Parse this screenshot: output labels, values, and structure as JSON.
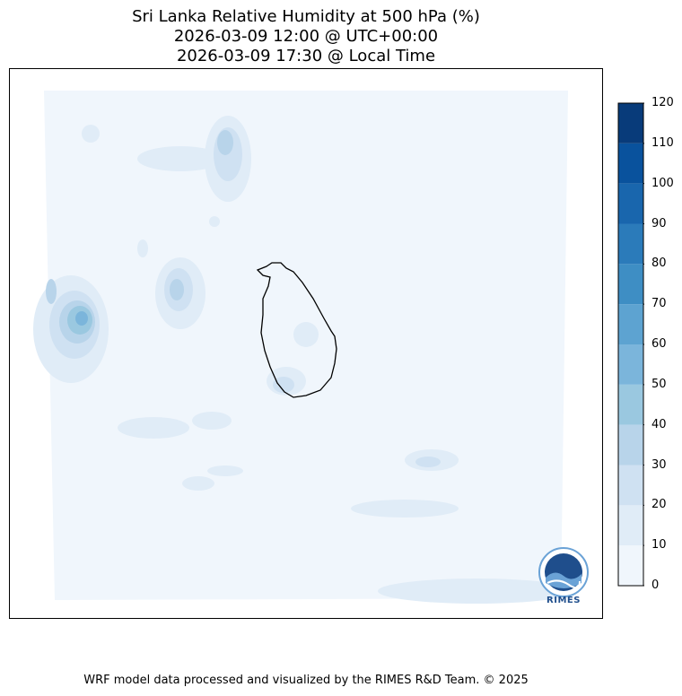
{
  "title": {
    "line1": "Sri Lanka Relative Humidity at 500 hPa (%)",
    "line2": "2026-03-09 12:00 @ UTC+00:00",
    "line3": "2026-03-09 17:30 @ Local Time"
  },
  "colorbar": {
    "levels": [
      0,
      10,
      20,
      30,
      40,
      50,
      60,
      70,
      80,
      90,
      100,
      110,
      120
    ],
    "tick_labels": [
      "0",
      "10",
      "20",
      "30",
      "40",
      "50",
      "60",
      "70",
      "80",
      "90",
      "100",
      "110",
      "120"
    ],
    "colors": [
      "#f0f6fc",
      "#e0ecf7",
      "#cfe1f2",
      "#b8d4ea",
      "#9ac8e0",
      "#7bb5db",
      "#5da3d1",
      "#3e8ec4",
      "#2b7bba",
      "#1966ad",
      "#09529d",
      "#083b7a"
    ]
  },
  "logo": {
    "text": "RIMES"
  },
  "footer": "WRF model data processed and visualized by the RIMES R&D Team. © 2025"
}
